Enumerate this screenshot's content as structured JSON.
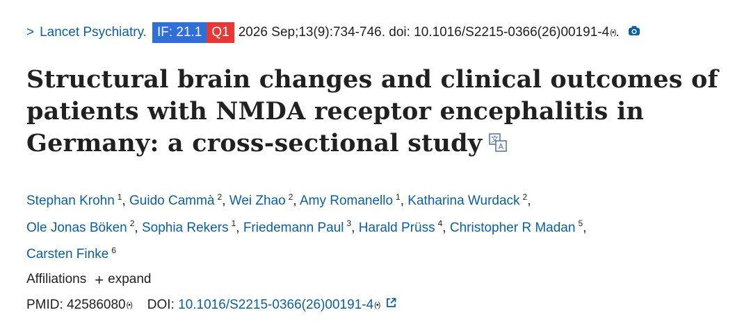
{
  "journal": {
    "chevron": ">",
    "name": "Lancet Psychiatry.",
    "if_badge": "IF: 21.1",
    "quartile_badge": "Q1",
    "citation": "2026 Sep;13(9):734-746. doi: 10.1016/S2215-0366(26)00191-4",
    "signal_mark": "(•)",
    "trailing": ".",
    "if_color": "#2f6fd6",
    "q_color": "#e53935"
  },
  "title": "Structural brain changes and clinical outcomes of patients with NMDA receptor encephalitis in Germany: a cross-sectional study",
  "authors": [
    {
      "name": "Stephan Krohn",
      "aff": "1"
    },
    {
      "name": "Guido Cammà",
      "aff": "2"
    },
    {
      "name": "Wei Zhao",
      "aff": "2"
    },
    {
      "name": "Amy Romanello",
      "aff": "1"
    },
    {
      "name": "Katharina Wurdack",
      "aff": "2"
    },
    {
      "name": "Ole Jonas Böken",
      "aff": "2"
    },
    {
      "name": "Sophia Rekers",
      "aff": "1"
    },
    {
      "name": "Friedemann Paul",
      "aff": "3"
    },
    {
      "name": "Harald Prüss",
      "aff": "4"
    },
    {
      "name": "Christopher R Madan",
      "aff": "5"
    },
    {
      "name": "Carsten Finke",
      "aff": "6"
    }
  ],
  "affiliations": {
    "label": "Affiliations",
    "expand_label": "expand"
  },
  "ids": {
    "pmid_label": "PMID:",
    "pmid": "42586080",
    "doi_label": "DOI:",
    "doi": "10.1016/S2215-0366(26)00191-4",
    "signal_mark": "(•)"
  },
  "icons": {
    "camera": "camera-icon",
    "translate": "translate-icon",
    "external_link": "external-link-icon"
  },
  "colors": {
    "link": "#0b5fa5",
    "text": "#212121"
  }
}
